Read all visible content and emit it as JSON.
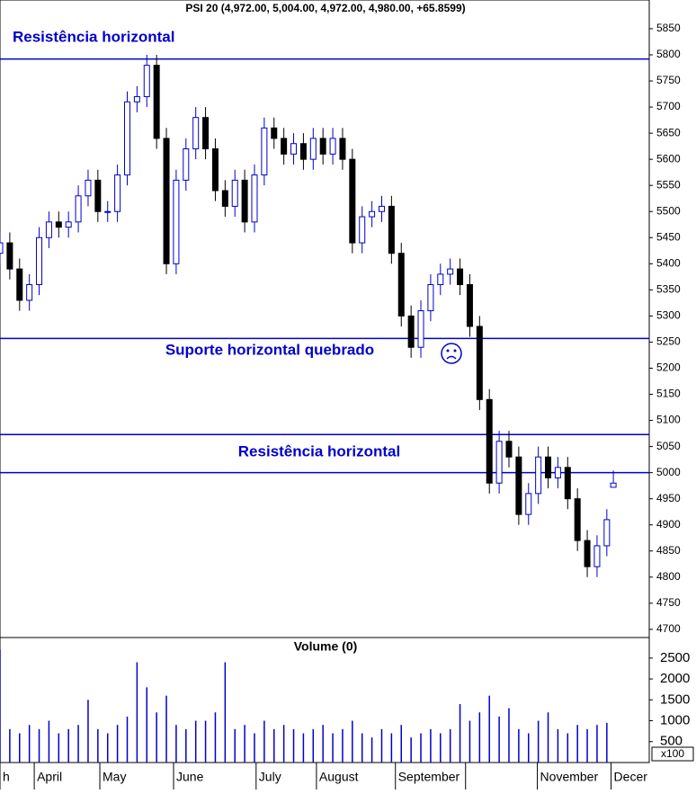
{
  "chart_data": {
    "type": "candlestick",
    "title": "PSI 20 (4,972.00, 5,004.00, 4,972.00, 4,980.00, +65.8599)",
    "x": [
      0,
      3,
      6,
      9,
      12,
      15,
      18,
      21,
      24,
      27,
      30,
      33,
      36,
      39,
      42,
      45,
      48,
      51,
      54,
      57,
      60,
      63,
      66,
      69,
      72,
      75,
      78,
      81,
      84,
      87,
      90,
      93,
      96,
      99,
      102,
      105,
      108,
      111,
      114,
      117,
      120,
      123,
      126,
      129,
      132,
      135,
      138,
      141,
      144,
      147,
      150,
      153,
      156,
      159,
      162,
      165,
      168,
      171,
      174,
      177,
      180,
      183,
      186,
      188
    ],
    "open": [
      5420,
      5440,
      5390,
      5330,
      5360,
      5450,
      5480,
      5470,
      5480,
      5530,
      5560,
      5500,
      5500,
      5570,
      5710,
      5720,
      5780,
      5640,
      5400,
      5560,
      5620,
      5680,
      5620,
      5540,
      5510,
      5560,
      5480,
      5570,
      5660,
      5640,
      5610,
      5630,
      5600,
      5640,
      5610,
      5640,
      5600,
      5440,
      5490,
      5500,
      5510,
      5420,
      5300,
      5240,
      5310,
      5360,
      5380,
      5390,
      5360,
      5280,
      5140,
      4980,
      5060,
      5030,
      4920,
      4960,
      5030,
      4990,
      5010,
      4950,
      4870,
      4820,
      4860,
      4972
    ],
    "high": [
      5460,
      5460,
      5410,
      5380,
      5470,
      5500,
      5500,
      5500,
      5550,
      5580,
      5580,
      5520,
      5590,
      5730,
      5740,
      5800,
      5800,
      5660,
      5580,
      5640,
      5700,
      5700,
      5640,
      5560,
      5580,
      5580,
      5590,
      5680,
      5680,
      5660,
      5650,
      5650,
      5660,
      5660,
      5660,
      5660,
      5620,
      5510,
      5520,
      5530,
      5530,
      5440,
      5320,
      5330,
      5380,
      5400,
      5410,
      5410,
      5380,
      5300,
      5160,
      5080,
      5080,
      5050,
      4980,
      5050,
      5050,
      5030,
      5030,
      4970,
      4890,
      4880,
      4930,
      5004
    ],
    "low": [
      5400,
      5370,
      5310,
      5310,
      5340,
      5430,
      5450,
      5450,
      5460,
      5510,
      5480,
      5480,
      5480,
      5550,
      5690,
      5700,
      5620,
      5380,
      5380,
      5540,
      5600,
      5600,
      5520,
      5490,
      5490,
      5460,
      5460,
      5550,
      5620,
      5590,
      5590,
      5580,
      5580,
      5590,
      5590,
      5580,
      5420,
      5420,
      5470,
      5480,
      5400,
      5280,
      5220,
      5220,
      5290,
      5340,
      5360,
      5340,
      5260,
      5120,
      4960,
      4960,
      5010,
      4900,
      4900,
      4940,
      4970,
      4970,
      4930,
      4850,
      4800,
      4800,
      4840,
      4972
    ],
    "close": [
      5440,
      5390,
      5330,
      5360,
      5450,
      5480,
      5470,
      5480,
      5530,
      5560,
      5500,
      5500,
      5570,
      5710,
      5720,
      5780,
      5640,
      5400,
      5560,
      5620,
      5680,
      5620,
      5540,
      5510,
      5560,
      5480,
      5570,
      5660,
      5640,
      5610,
      5630,
      5600,
      5640,
      5610,
      5640,
      5600,
      5440,
      5490,
      5500,
      5510,
      5420,
      5300,
      5240,
      5310,
      5360,
      5380,
      5390,
      5360,
      5280,
      5140,
      4980,
      5060,
      5030,
      4920,
      4960,
      5030,
      4990,
      5010,
      4950,
      4870,
      4820,
      4860,
      4910,
      4980
    ],
    "xlim": [
      0,
      199
    ],
    "xticks": [
      {
        "value": 0,
        "label": "h"
      },
      {
        "value": 10.5,
        "label": "April"
      },
      {
        "value": 30.6,
        "label": "May"
      },
      {
        "value": 53.2,
        "label": "June"
      },
      {
        "value": 78.5,
        "label": "July"
      },
      {
        "value": 97,
        "label": "August"
      },
      {
        "value": 121.2,
        "label": "September"
      },
      142.7,
      {
        "value": 164.7,
        "label": "November"
      },
      {
        "value": 187.3,
        "label": "Decer"
      }
    ],
    "ylim": [
      4686,
      5905
    ],
    "yticks": [
      4700,
      4750,
      4800,
      4850,
      4900,
      4950,
      5000,
      5050,
      5100,
      5150,
      5200,
      5250,
      5300,
      5350,
      5400,
      5450,
      5500,
      5550,
      5600,
      5650,
      5700,
      5750,
      5800,
      5850
    ],
    "up_color": "#0000cc",
    "down_color": "#000000",
    "lines": [
      {
        "value": 5792,
        "label": "Resistência horizontal"
      },
      {
        "value": 5257,
        "label": "Suporte horizontal quebrado"
      },
      {
        "value": 5073,
        "label": "Resistência horizontal"
      },
      {
        "value": 5000
      }
    ],
    "line_color": "#0000cc",
    "volume": {
      "title": "Volume (0)",
      "unit": "x100",
      "color": "#0000cc",
      "values": [
        2700,
        800,
        700,
        900,
        800,
        1000,
        700,
        800,
        900,
        1500,
        800,
        700,
        900,
        1100,
        2400,
        1800,
        1200,
        1600,
        900,
        800,
        1000,
        1000,
        1200,
        2400,
        800,
        900,
        700,
        1000,
        800,
        900,
        800,
        700,
        800,
        900,
        700,
        800,
        1000,
        700,
        600,
        800,
        700,
        900,
        600,
        700,
        800,
        700,
        800,
        1400,
        1000,
        1200,
        1600,
        1100,
        1300,
        800,
        700,
        1000,
        1200,
        800,
        700,
        900,
        800,
        900,
        950,
        0
      ],
      "ylim": [
        0,
        2970
      ],
      "yticks": [
        500,
        1000,
        1500,
        2000,
        2500
      ]
    }
  }
}
